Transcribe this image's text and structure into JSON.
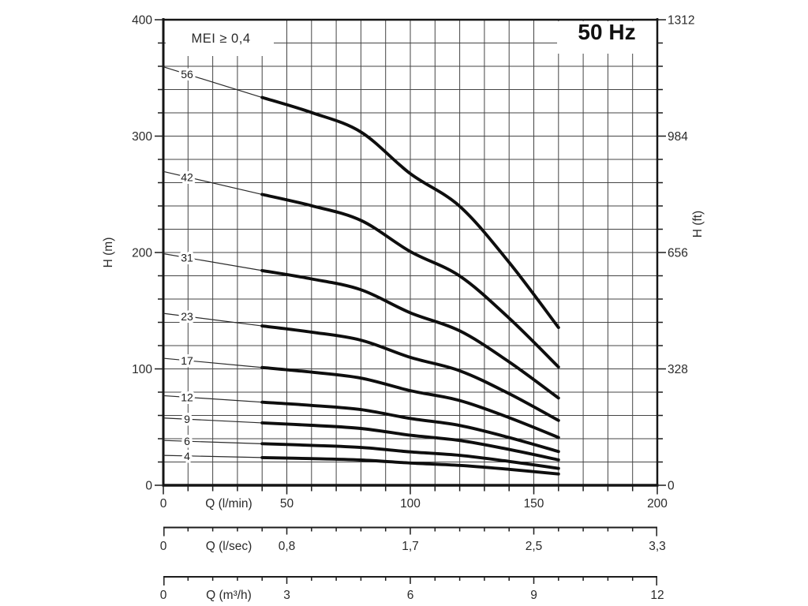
{
  "chart_data": {
    "type": "line",
    "title": "50 Hz",
    "mei_badge": "MEI ≥ 0,4",
    "x_axes": [
      {
        "id": "lmin",
        "title": "Q (l/min)",
        "range": [
          0,
          200
        ],
        "minor_step": 10,
        "label_values": [
          0,
          50,
          100,
          150,
          200
        ],
        "label_texts": [
          "0",
          "50",
          "100",
          "150",
          "200"
        ]
      },
      {
        "id": "lsec",
        "title": "Q (l/sec)",
        "label_values": [
          0,
          50,
          100,
          150,
          200
        ],
        "label_texts": [
          "0",
          "0,8",
          "1,7",
          "2,5",
          "3,3"
        ]
      },
      {
        "id": "m3h",
        "title": "Q (m³/h)",
        "label_values": [
          0,
          50,
          100,
          150,
          200
        ],
        "label_texts": [
          "0",
          "3",
          "6",
          "9",
          "12"
        ]
      }
    ],
    "y_left": {
      "title": "H (m)",
      "range": [
        0,
        400
      ],
      "minor_step": 20,
      "label_values": [
        0,
        100,
        200,
        300,
        400
      ],
      "label_texts": [
        "0",
        "100",
        "200",
        "300",
        "400"
      ]
    },
    "y_right": {
      "title": "H (ft)",
      "label_values": [
        0,
        100,
        200,
        300,
        400
      ],
      "label_texts": [
        "0",
        "328",
        "656",
        "984",
        "1312"
      ]
    },
    "series": [
      {
        "label": "56",
        "stages": 56,
        "shutoff_head_m": 359.5,
        "q_lmin": [
          40,
          60,
          80,
          100,
          120,
          140,
          160
        ],
        "head_m": [
          333.2,
          320.3,
          303.5,
          267.7,
          239.7,
          191.5,
          135.5
        ]
      },
      {
        "label": "42",
        "stages": 42,
        "shutoff_head_m": 269.6,
        "q_lmin": [
          40,
          60,
          80,
          100,
          120,
          140,
          160
        ],
        "head_m": [
          249.9,
          240.2,
          227.6,
          200.8,
          179.8,
          143.6,
          101.6
        ]
      },
      {
        "label": "31",
        "stages": 31,
        "shutoff_head_m": 199.0,
        "q_lmin": [
          40,
          60,
          80,
          100,
          120,
          140,
          160
        ],
        "head_m": [
          184.5,
          177.3,
          168.0,
          148.2,
          132.7,
          106.0,
          75.0
        ]
      },
      {
        "label": "23",
        "stages": 23,
        "shutoff_head_m": 147.7,
        "q_lmin": [
          40,
          60,
          80,
          100,
          120,
          140,
          160
        ],
        "head_m": [
          136.9,
          131.6,
          124.7,
          109.9,
          98.4,
          78.7,
          55.7
        ]
      },
      {
        "label": "17",
        "stages": 17,
        "shutoff_head_m": 109.1,
        "q_lmin": [
          40,
          60,
          80,
          100,
          120,
          140,
          160
        ],
        "head_m": [
          101.2,
          97.2,
          92.1,
          81.3,
          72.8,
          58.1,
          41.1
        ]
      },
      {
        "label": "12",
        "stages": 12,
        "shutoff_head_m": 77.0,
        "q_lmin": [
          40,
          60,
          80,
          100,
          120,
          140,
          160
        ],
        "head_m": [
          71.4,
          68.6,
          65.0,
          57.4,
          51.4,
          41.0,
          29.0
        ]
      },
      {
        "label": "9",
        "stages": 9,
        "shutoff_head_m": 57.8,
        "q_lmin": [
          40,
          60,
          80,
          100,
          120,
          140,
          160
        ],
        "head_m": [
          53.6,
          51.5,
          48.8,
          43.0,
          38.5,
          30.8,
          21.8
        ]
      },
      {
        "label": "6",
        "stages": 6,
        "shutoff_head_m": 38.5,
        "q_lmin": [
          40,
          60,
          80,
          100,
          120,
          140,
          160
        ],
        "head_m": [
          35.7,
          34.3,
          32.5,
          28.7,
          25.7,
          20.5,
          14.5
        ]
      },
      {
        "label": "4",
        "stages": 4,
        "shutoff_head_m": 25.7,
        "q_lmin": [
          40,
          60,
          80,
          100,
          120,
          140,
          160
        ],
        "head_m": [
          23.8,
          22.9,
          21.7,
          19.1,
          17.1,
          13.7,
          9.7
        ]
      }
    ]
  }
}
